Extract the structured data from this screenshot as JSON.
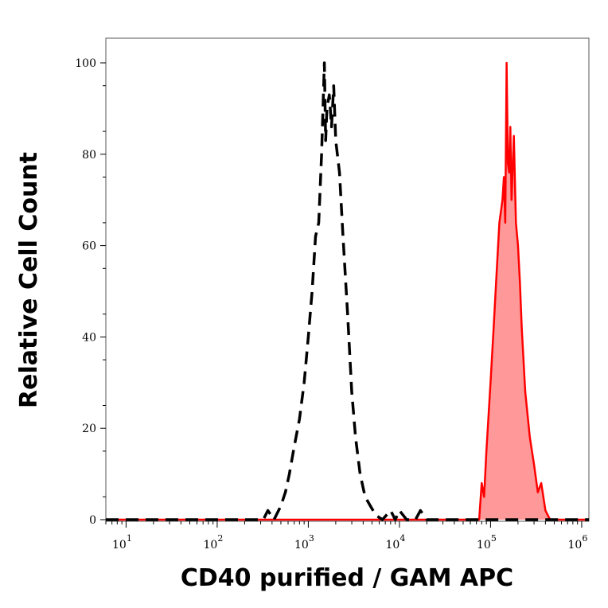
{
  "chart_data": {
    "type": "area",
    "title": "",
    "xlabel": "CD40 purified / GAM APC",
    "ylabel": "Relative Cell Count",
    "x_scale": "log",
    "xlim": [
      6,
      1200000
    ],
    "ylim": [
      0,
      105
    ],
    "x_ticks": [
      {
        "value": 10,
        "base": "10",
        "exp": "1"
      },
      {
        "value": 100,
        "base": "10",
        "exp": "2"
      },
      {
        "value": 1000,
        "base": "10",
        "exp": "3"
      },
      {
        "value": 10000,
        "base": "10",
        "exp": "4"
      },
      {
        "value": 100000,
        "base": "10",
        "exp": "5"
      },
      {
        "value": 1000000,
        "base": "10",
        "exp": "6"
      }
    ],
    "y_ticks": [
      0,
      20,
      40,
      60,
      80,
      100
    ],
    "grid": false,
    "colors": {
      "control": "#000000",
      "sample_line": "#ff0000",
      "sample_fill": "#ff9999"
    },
    "series": [
      {
        "style": "dashed-black",
        "x": [
          6,
          320,
          360,
          420,
          500,
          560,
          620,
          700,
          800,
          900,
          1000,
          1100,
          1200,
          1300,
          1400,
          1500,
          1550,
          1600,
          1700,
          1800,
          1900,
          2000,
          2200,
          2400,
          2700,
          3000,
          3300,
          3700,
          4200,
          4800,
          5500,
          6500,
          8000,
          9000,
          10000,
          12000,
          15000,
          17000,
          20000,
          1200000
        ],
        "y": [
          0,
          0,
          2,
          0,
          3,
          6,
          10,
          16,
          22,
          30,
          40,
          50,
          62,
          65,
          80,
          100,
          83,
          90,
          93,
          86,
          95,
          83,
          76,
          62,
          45,
          28,
          18,
          10,
          5,
          3,
          1,
          0,
          2,
          0,
          2,
          0,
          0,
          2,
          0,
          0
        ]
      },
      {
        "style": "filled-red",
        "x": [
          6,
          75000,
          80000,
          85000,
          90000,
          100000,
          108000,
          115000,
          125000,
          135000,
          140000,
          145000,
          150000,
          155000,
          160000,
          165000,
          170000,
          180000,
          190000,
          200000,
          210000,
          220000,
          240000,
          270000,
          300000,
          330000,
          360000,
          400000,
          450000,
          1200000
        ],
        "y": [
          0,
          0,
          8,
          5,
          15,
          30,
          42,
          52,
          65,
          70,
          75,
          65,
          100,
          78,
          76,
          86,
          70,
          84,
          65,
          60,
          52,
          42,
          28,
          18,
          12,
          6,
          8,
          2,
          0,
          0
        ]
      }
    ]
  }
}
